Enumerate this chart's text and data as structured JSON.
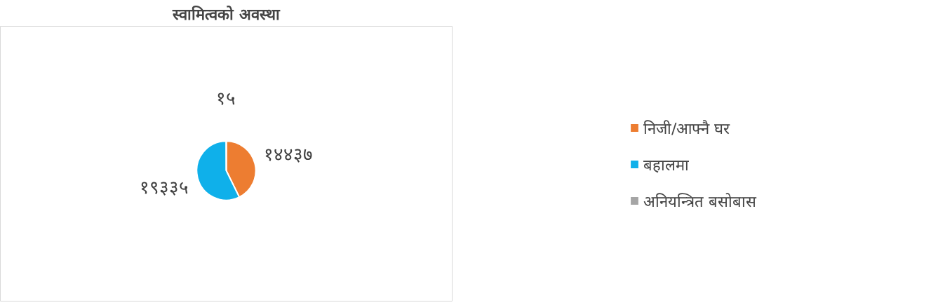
{
  "chart_data": {
    "type": "pie",
    "title": "स्वामित्वको अवस्था",
    "categories": [
      "निजी/आफ्नै घर",
      "बहालमा",
      "अनियन्त्रित बसोबास"
    ],
    "values": [
      14437,
      19335,
      15
    ],
    "colors": [
      "#ed7d31",
      "#0fb0ea",
      "#a5a5a5"
    ],
    "value_labels": [
      "१४४३७",
      "१९३३५",
      "१५"
    ],
    "legend": "right"
  }
}
